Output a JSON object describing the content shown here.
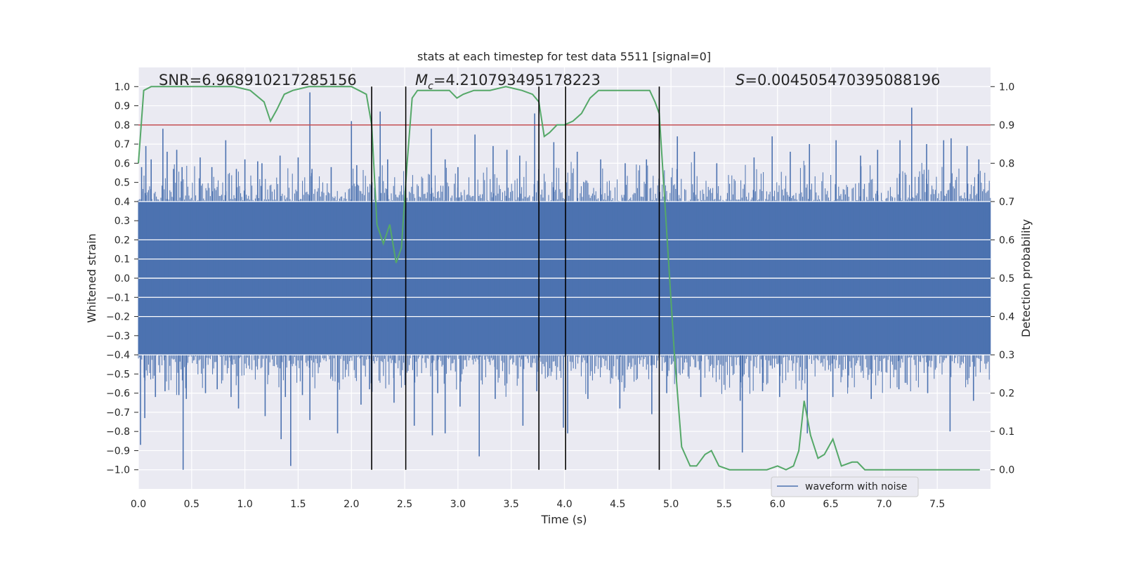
{
  "chart_data": {
    "type": "line",
    "title": "stats at each timestep for test data 5511 [signal=0]",
    "xlabel": "Time (s)",
    "ylabel": "Whitened strain",
    "y2label": "Detection probability",
    "xlim": [
      0.0,
      8.0
    ],
    "ylim": [
      -1.1,
      1.1
    ],
    "y2lim": [
      -0.05,
      1.05
    ],
    "xticks": [
      0.0,
      0.5,
      1.0,
      1.5,
      2.0,
      2.5,
      3.0,
      3.5,
      4.0,
      4.5,
      5.0,
      5.5,
      6.0,
      6.5,
      7.0,
      7.5
    ],
    "xtick_labels": [
      "0.0",
      "0.5",
      "1.0",
      "1.5",
      "2.0",
      "2.5",
      "3.0",
      "3.5",
      "4.0",
      "4.5",
      "5.0",
      "5.5",
      "6.0",
      "6.5",
      "7.0",
      "7.5"
    ],
    "yticks": [
      1.0,
      0.9,
      0.8,
      0.7,
      0.6,
      0.5,
      0.4,
      0.3,
      0.2,
      0.1,
      0.0,
      -0.1,
      -0.2,
      -0.3,
      -0.4,
      -0.5,
      -0.6,
      -0.7,
      -0.8,
      -0.9,
      -1.0
    ],
    "ytick_labels": [
      "1.0",
      "0.9",
      "0.8",
      "0.7",
      "0.6",
      "0.5",
      "0.4",
      "0.3",
      "0.2",
      "0.1",
      "0.0",
      "−0.1",
      "−0.2",
      "−0.3",
      "−0.4",
      "−0.5",
      "−0.6",
      "−0.7",
      "−0.8",
      "−0.9",
      "−1.0"
    ],
    "y2ticks": [
      1.0,
      0.9,
      0.8,
      0.7,
      0.6,
      0.5,
      0.4,
      0.3,
      0.2,
      0.1,
      0.0
    ],
    "y2tick_labels": [
      "1.0",
      "0.9",
      "0.8",
      "0.7",
      "0.6",
      "0.5",
      "0.4",
      "0.3",
      "0.2",
      "0.1",
      "0.0"
    ],
    "grid": true,
    "legend": {
      "placement": "lower-right",
      "entries": [
        {
          "label": "waveform with noise",
          "color": "#4c72b0"
        }
      ]
    },
    "annotations": {
      "snr": "SNR=6.968910217285156",
      "mc_symbol": "M",
      "mc_sub": "c",
      "mc_value": "=4.210793495178223",
      "s_symbol": "S",
      "s_value": "=0.004505470395088196"
    },
    "threshold_y2": 0.9,
    "vertical_lines_x": [
      2.19,
      2.51,
      3.76,
      4.01,
      4.89
    ],
    "series": [
      {
        "name": "waveform with noise",
        "axis": "left",
        "color": "#4c72b0",
        "kind": "noise-envelope",
        "core_amplitude": 0.4,
        "positive_spikes": [
          {
            "x": 0.03,
            "y": 0.58
          },
          {
            "x": 0.07,
            "y": 0.69
          },
          {
            "x": 0.12,
            "y": 0.62
          },
          {
            "x": 0.23,
            "y": 0.78
          },
          {
            "x": 0.27,
            "y": 0.66
          },
          {
            "x": 0.33,
            "y": 0.57
          },
          {
            "x": 0.36,
            "y": 0.67
          },
          {
            "x": 0.41,
            "y": 0.58
          },
          {
            "x": 0.58,
            "y": 0.63
          },
          {
            "x": 0.69,
            "y": 0.58
          },
          {
            "x": 0.82,
            "y": 0.72
          },
          {
            "x": 0.92,
            "y": 0.57
          },
          {
            "x": 1.0,
            "y": 0.62
          },
          {
            "x": 1.12,
            "y": 0.61
          },
          {
            "x": 1.16,
            "y": 0.6
          },
          {
            "x": 1.33,
            "y": 0.64
          },
          {
            "x": 1.5,
            "y": 0.63
          },
          {
            "x": 1.61,
            "y": 0.97
          },
          {
            "x": 1.63,
            "y": 0.57
          },
          {
            "x": 1.81,
            "y": 0.58
          },
          {
            "x": 2.0,
            "y": 0.82
          },
          {
            "x": 2.05,
            "y": 0.59
          },
          {
            "x": 2.27,
            "y": 0.87
          },
          {
            "x": 2.34,
            "y": 0.62
          },
          {
            "x": 2.75,
            "y": 0.78
          },
          {
            "x": 2.88,
            "y": 0.62
          },
          {
            "x": 3.0,
            "y": 0.58
          },
          {
            "x": 3.16,
            "y": 0.75
          },
          {
            "x": 3.33,
            "y": 0.69
          },
          {
            "x": 3.46,
            "y": 0.67
          },
          {
            "x": 3.58,
            "y": 0.64
          },
          {
            "x": 3.72,
            "y": 0.86
          },
          {
            "x": 3.9,
            "y": 0.71
          },
          {
            "x": 4.12,
            "y": 0.66
          },
          {
            "x": 4.34,
            "y": 0.62
          },
          {
            "x": 4.57,
            "y": 0.6
          },
          {
            "x": 4.77,
            "y": 0.62
          },
          {
            "x": 5.06,
            "y": 0.74
          },
          {
            "x": 5.22,
            "y": 0.66
          },
          {
            "x": 5.43,
            "y": 0.6
          },
          {
            "x": 5.78,
            "y": 0.63
          },
          {
            "x": 5.95,
            "y": 0.74
          },
          {
            "x": 6.12,
            "y": 0.66
          },
          {
            "x": 6.3,
            "y": 0.7
          },
          {
            "x": 6.55,
            "y": 0.72
          },
          {
            "x": 6.78,
            "y": 0.64
          },
          {
            "x": 6.94,
            "y": 0.67
          },
          {
            "x": 7.15,
            "y": 0.72
          },
          {
            "x": 7.26,
            "y": 0.89
          },
          {
            "x": 7.4,
            "y": 0.7
          },
          {
            "x": 7.56,
            "y": 0.72
          },
          {
            "x": 7.63,
            "y": 0.73
          },
          {
            "x": 7.78,
            "y": 0.69
          },
          {
            "x": 7.89,
            "y": 0.62
          }
        ],
        "negative_spikes": [
          {
            "x": 0.02,
            "y": -0.87
          },
          {
            "x": 0.06,
            "y": -0.73
          },
          {
            "x": 0.16,
            "y": -0.62
          },
          {
            "x": 0.25,
            "y": -0.59
          },
          {
            "x": 0.38,
            "y": -0.61
          },
          {
            "x": 0.42,
            "y": -1.0
          },
          {
            "x": 0.45,
            "y": -0.63
          },
          {
            "x": 0.63,
            "y": -0.6
          },
          {
            "x": 0.74,
            "y": -0.58
          },
          {
            "x": 0.87,
            "y": -0.62
          },
          {
            "x": 0.94,
            "y": -0.68
          },
          {
            "x": 1.19,
            "y": -0.72
          },
          {
            "x": 1.34,
            "y": -0.84
          },
          {
            "x": 1.38,
            "y": -0.62
          },
          {
            "x": 1.43,
            "y": -0.98
          },
          {
            "x": 1.54,
            "y": -0.61
          },
          {
            "x": 1.61,
            "y": -0.74
          },
          {
            "x": 1.87,
            "y": -0.81
          },
          {
            "x": 2.09,
            "y": -0.66
          },
          {
            "x": 2.17,
            "y": -0.58
          },
          {
            "x": 2.4,
            "y": -0.65
          },
          {
            "x": 2.59,
            "y": -0.77
          },
          {
            "x": 2.76,
            "y": -0.82
          },
          {
            "x": 2.81,
            "y": -0.6
          },
          {
            "x": 2.88,
            "y": -0.81
          },
          {
            "x": 3.02,
            "y": -0.67
          },
          {
            "x": 3.2,
            "y": -0.93
          },
          {
            "x": 3.35,
            "y": -0.63
          },
          {
            "x": 3.61,
            "y": -0.77
          },
          {
            "x": 3.74,
            "y": -0.59
          },
          {
            "x": 3.99,
            "y": -0.78
          },
          {
            "x": 4.03,
            "y": -0.81
          },
          {
            "x": 4.22,
            "y": -0.63
          },
          {
            "x": 4.52,
            "y": -0.68
          },
          {
            "x": 4.82,
            "y": -0.71
          },
          {
            "x": 4.96,
            "y": -0.6
          },
          {
            "x": 5.28,
            "y": -0.62
          },
          {
            "x": 5.65,
            "y": -0.64
          },
          {
            "x": 5.67,
            "y": -0.91
          },
          {
            "x": 5.86,
            "y": -0.59
          },
          {
            "x": 6.02,
            "y": -0.62
          },
          {
            "x": 6.28,
            "y": -0.81
          },
          {
            "x": 6.52,
            "y": -0.62
          },
          {
            "x": 6.66,
            "y": -0.57
          },
          {
            "x": 6.88,
            "y": -0.63
          },
          {
            "x": 7.14,
            "y": -0.58
          },
          {
            "x": 7.41,
            "y": -0.6
          },
          {
            "x": 7.62,
            "y": -0.8
          },
          {
            "x": 7.84,
            "y": -0.64
          }
        ]
      },
      {
        "name": "detection probability",
        "axis": "right",
        "color": "#55a868",
        "x": [
          0.0,
          0.05,
          0.12,
          0.2,
          0.35,
          0.5,
          0.7,
          0.9,
          1.05,
          1.18,
          1.24,
          1.3,
          1.37,
          1.45,
          1.6,
          1.8,
          2.0,
          2.07,
          2.14,
          2.19,
          2.24,
          2.3,
          2.36,
          2.42,
          2.47,
          2.52,
          2.57,
          2.62,
          2.7,
          2.8,
          2.92,
          2.99,
          3.05,
          3.15,
          3.3,
          3.45,
          3.6,
          3.7,
          3.76,
          3.81,
          3.86,
          3.93,
          4.0,
          4.08,
          4.16,
          4.24,
          4.32,
          4.42,
          4.55,
          4.7,
          4.8,
          4.85,
          4.89,
          4.96,
          5.03,
          5.1,
          5.18,
          5.24,
          5.32,
          5.38,
          5.45,
          5.55,
          5.7,
          5.9,
          6.0,
          6.08,
          6.15,
          6.2,
          6.25,
          6.31,
          6.38,
          6.44,
          6.52,
          6.6,
          6.7,
          6.75,
          6.82,
          6.88,
          6.95,
          7.1,
          7.25,
          7.4,
          7.6,
          7.75,
          7.9
        ],
        "y": [
          0.8,
          0.99,
          1.0,
          1.0,
          1.0,
          1.0,
          1.0,
          1.0,
          0.99,
          0.96,
          0.91,
          0.94,
          0.98,
          0.99,
          1.0,
          1.0,
          1.0,
          0.99,
          0.98,
          0.9,
          0.64,
          0.59,
          0.64,
          0.54,
          0.58,
          0.79,
          0.97,
          0.99,
          0.99,
          0.99,
          0.99,
          0.97,
          0.98,
          0.99,
          0.99,
          1.0,
          0.99,
          0.98,
          0.96,
          0.87,
          0.88,
          0.9,
          0.9,
          0.91,
          0.93,
          0.97,
          0.99,
          0.99,
          0.99,
          0.99,
          0.99,
          0.96,
          0.93,
          0.62,
          0.31,
          0.06,
          0.01,
          0.01,
          0.04,
          0.05,
          0.01,
          0.0,
          0.0,
          0.0,
          0.01,
          0.0,
          0.01,
          0.05,
          0.18,
          0.09,
          0.03,
          0.04,
          0.08,
          0.01,
          0.02,
          0.02,
          0.0,
          0.0,
          0.0,
          0.0,
          0.0,
          0.0,
          0.0,
          0.0,
          0.0
        ]
      }
    ]
  }
}
